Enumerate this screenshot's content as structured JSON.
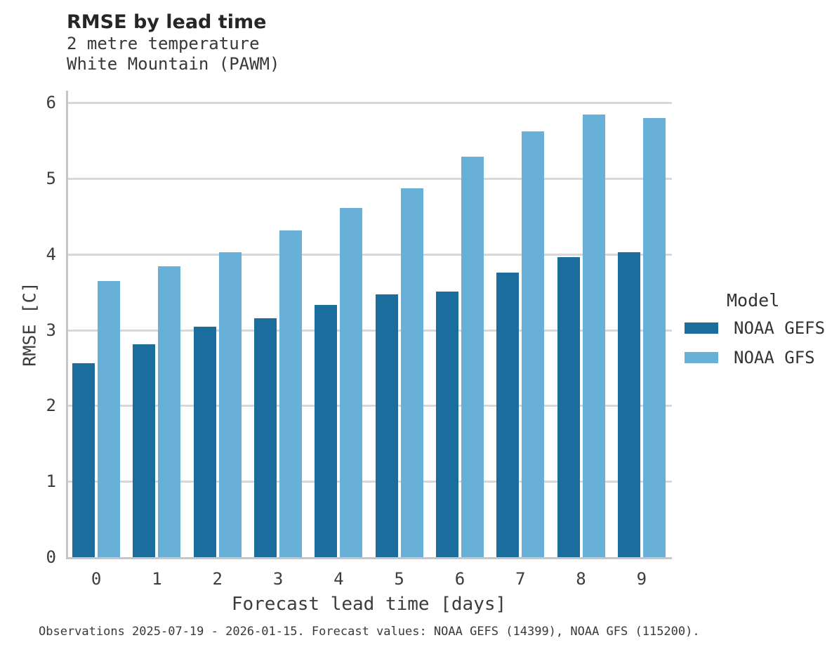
{
  "title": "RMSE by lead time",
  "subtitle_line1": "2 metre temperature",
  "subtitle_line2": "White Mountain (PAWM)",
  "caption": "Observations 2025-07-19 - 2026-01-15. Forecast values: NOAA GEFS (14399), NOAA GFS (115200).",
  "colors": {
    "gefs": "#1b6d9d",
    "gfs": "#69b0d9",
    "grid": "#d8d8d8",
    "spine": "#c6c6c6"
  },
  "legend": {
    "title": "Model",
    "entries": [
      {
        "label": "NOAA GEFS",
        "color": "#1b6d9d"
      },
      {
        "label": "NOAA GFS",
        "color": "#69b0d9"
      }
    ]
  },
  "axes": {
    "xlabel": "Forecast lead time [days]",
    "ylabel": "RMSE [C]"
  },
  "chart_data": {
    "type": "bar",
    "title": "RMSE by lead time",
    "subtitle": [
      "2 metre temperature",
      "White Mountain (PAWM)"
    ],
    "categories": [
      "0",
      "1",
      "2",
      "3",
      "4",
      "5",
      "6",
      "7",
      "8",
      "9"
    ],
    "series": [
      {
        "name": "NOAA GEFS",
        "color": "#1b6d9d",
        "values": [
          2.56,
          2.81,
          3.04,
          3.15,
          3.33,
          3.47,
          3.51,
          3.76,
          3.96,
          4.03
        ]
      },
      {
        "name": "NOAA GFS",
        "color": "#69b0d9",
        "values": [
          3.65,
          3.84,
          4.03,
          4.31,
          4.61,
          4.87,
          5.29,
          5.62,
          5.84,
          5.8
        ]
      }
    ],
    "xlabel": "Forecast lead time [days]",
    "ylabel": "RMSE [C]",
    "ylim": [
      0,
      6.16
    ],
    "yticks": [
      0,
      1,
      2,
      3,
      4,
      5,
      6
    ],
    "grid": "horizontal",
    "legend_title": "Model",
    "legend_position": "right"
  }
}
